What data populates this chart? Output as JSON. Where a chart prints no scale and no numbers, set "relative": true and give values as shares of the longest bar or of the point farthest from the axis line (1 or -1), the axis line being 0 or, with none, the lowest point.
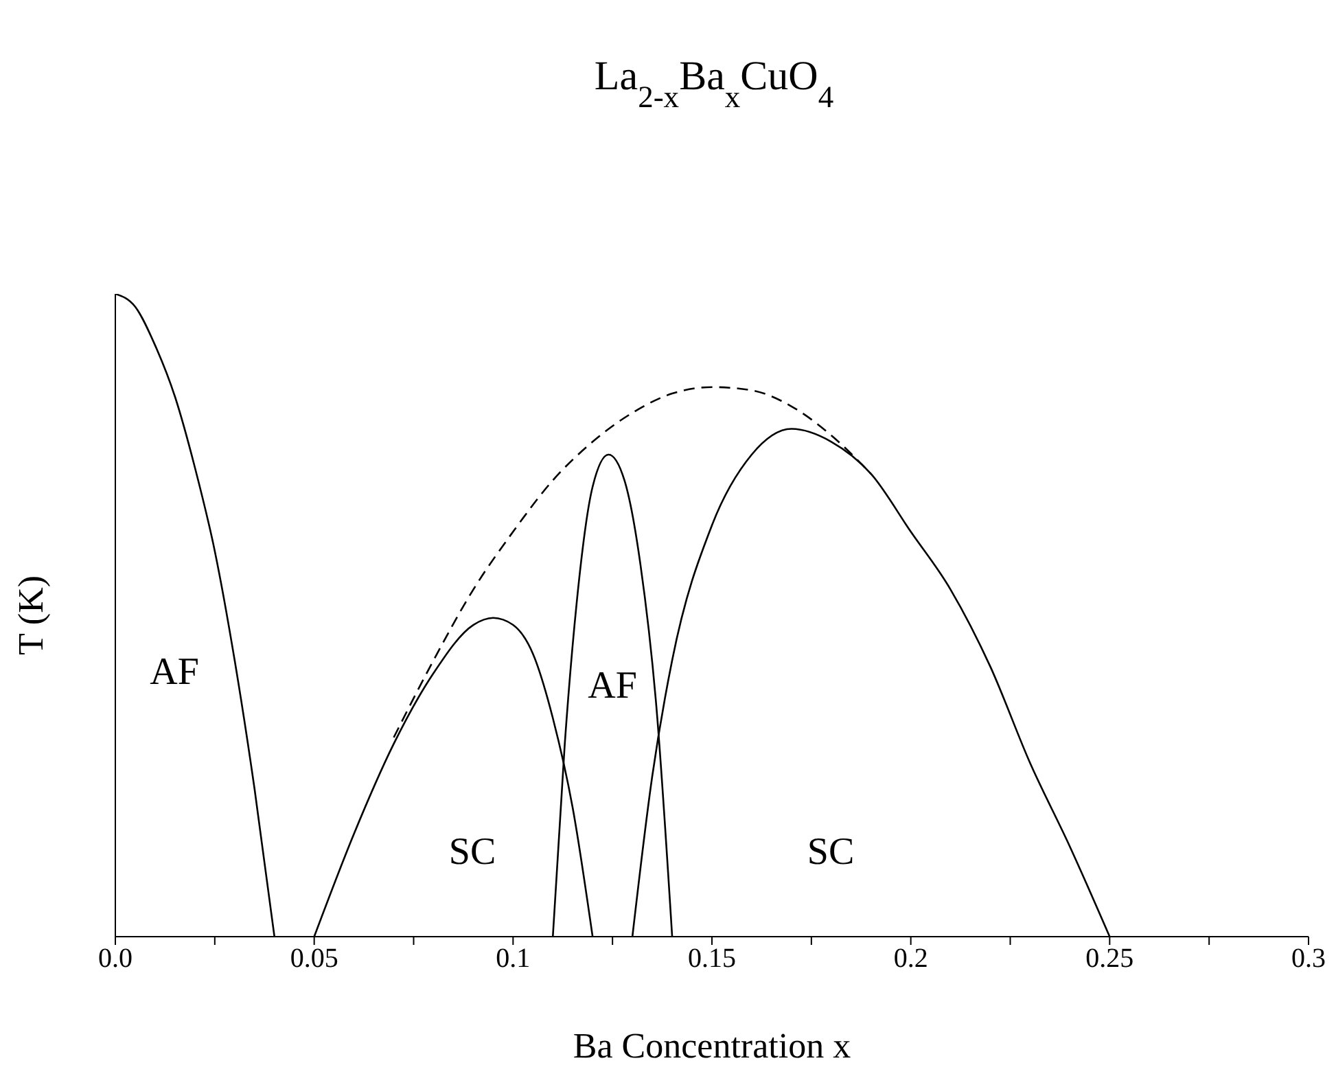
{
  "chart_data": {
    "type": "line",
    "relative": true,
    "title": "La$_{2-x}$Ba$_{x}$CuO$_{4}$",
    "xlabel": "Ba Concentration x",
    "ylabel": "T (K)",
    "xlim": [
      0,
      0.3
    ],
    "xticks": [
      {
        "value": 0,
        "label": "0.0"
      },
      {
        "value": 0.025,
        "label": null
      },
      0.05,
      {
        "value": 0.075,
        "label": null
      },
      0.1,
      {
        "value": 0.125,
        "label": null
      },
      0.15,
      {
        "value": 0.175,
        "label": null
      },
      0.2,
      {
        "value": 0.225,
        "label": null
      },
      0.25,
      {
        "value": 0.275,
        "label": null
      },
      0.3
    ],
    "marker": "none",
    "series": [
      {
        "color": "#000000",
        "line_style": "solid",
        "x": [
          0,
          0.005,
          0.01,
          0.015,
          0.02,
          0.025,
          0.03,
          0.035,
          0.04
        ],
        "values": [
          1,
          0.98,
          0.92,
          0.84,
          0.73,
          0.6,
          0.43,
          0.23,
          0
        ]
      },
      {
        "color": "#000000",
        "line_style": "solid",
        "x": [
          0.05,
          0.06,
          0.07,
          0.08,
          0.09,
          0.095,
          0.1,
          0.105,
          0.11,
          0.115,
          0.12
        ],
        "values": [
          0,
          0.16,
          0.3,
          0.41,
          0.485,
          0.496,
          0.485,
          0.44,
          0.34,
          0.2,
          0
        ]
      },
      {
        "color": "#000000",
        "line_style": "solid",
        "x": [
          0.11,
          0.113,
          0.116,
          0.12,
          0.124,
          0.128,
          0.132,
          0.136,
          0.14
        ],
        "values": [
          0,
          0.3,
          0.52,
          0.7,
          0.75,
          0.71,
          0.58,
          0.36,
          0
        ]
      },
      {
        "color": "#000000",
        "line_style": "solid",
        "x": [
          0.13,
          0.135,
          0.14,
          0.15,
          0.16,
          0.17,
          0.18,
          0.19,
          0.2,
          0.21,
          0.22,
          0.23,
          0.24,
          0.25
        ],
        "values": [
          0,
          0.25,
          0.43,
          0.64,
          0.75,
          0.79,
          0.77,
          0.72,
          0.63,
          0.54,
          0.42,
          0.27,
          0.14,
          0
        ]
      },
      {
        "color": "#000000",
        "line_style": "dashed",
        "x": [
          0.07,
          0.08,
          0.09,
          0.1,
          0.11,
          0.12,
          0.13,
          0.14,
          0.15,
          0.16,
          0.17,
          0.18,
          0.19
        ],
        "values": [
          0.31,
          0.43,
          0.54,
          0.63,
          0.71,
          0.77,
          0.815,
          0.845,
          0.855,
          0.85,
          0.825,
          0.78,
          0.72
        ]
      }
    ],
    "annotations": [
      "AF",
      "SC",
      "AF",
      "SC"
    ]
  }
}
